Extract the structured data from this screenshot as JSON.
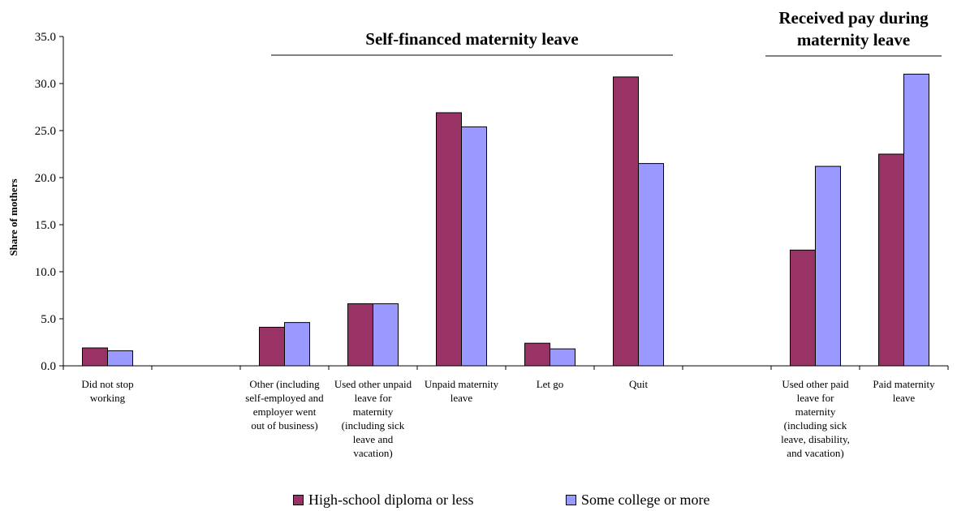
{
  "chart_data": {
    "type": "bar",
    "title": "",
    "xlabel": "",
    "ylabel": "Share of mothers",
    "ylim": [
      0,
      35
    ],
    "yticks": [
      "0.0",
      "5.0",
      "10.0",
      "15.0",
      "20.0",
      "25.0",
      "30.0",
      "35.0"
    ],
    "grid": false,
    "legend_position": "bottom",
    "categories": [
      "Did not stop working",
      "",
      "Other (including self-employed and employer went out of business)",
      "Used other unpaid leave for maternity (including sick leave and vacation)",
      "Unpaid maternity leave",
      "Let go",
      "Quit",
      "",
      "Used other paid leave for maternity (including sick leave, disability, and vacation)",
      "Paid maternity leave"
    ],
    "category_label_lines": [
      [
        "Did not stop",
        "working"
      ],
      [],
      [
        "Other (including",
        "self-employed and",
        "employer went",
        "out of business)"
      ],
      [
        "Used other unpaid",
        "leave for",
        "maternity",
        "(including sick",
        "leave and",
        "vacation)"
      ],
      [
        "Unpaid maternity",
        "leave"
      ],
      [
        "Let go"
      ],
      [
        "Quit"
      ],
      [],
      [
        "Used other paid",
        "leave for",
        "maternity",
        "(including sick",
        "leave, disability,",
        "and vacation)"
      ],
      [
        "Paid maternity",
        "leave"
      ]
    ],
    "series": [
      {
        "name": "High-school diploma or less",
        "color": "#993366",
        "values": [
          1.9,
          null,
          4.1,
          6.6,
          26.9,
          2.4,
          30.7,
          null,
          12.3,
          22.5
        ]
      },
      {
        "name": "Some college or more",
        "color": "#9999FF",
        "values": [
          1.6,
          null,
          4.6,
          6.6,
          25.4,
          1.8,
          21.5,
          null,
          21.2,
          31.0
        ]
      }
    ],
    "group_annotations": [
      {
        "lines": [
          "Self-financed maternity leave"
        ],
        "from": 2,
        "to": 6
      },
      {
        "lines": [
          "Received pay during",
          "maternity leave"
        ],
        "from": 8,
        "to": 9
      }
    ]
  }
}
